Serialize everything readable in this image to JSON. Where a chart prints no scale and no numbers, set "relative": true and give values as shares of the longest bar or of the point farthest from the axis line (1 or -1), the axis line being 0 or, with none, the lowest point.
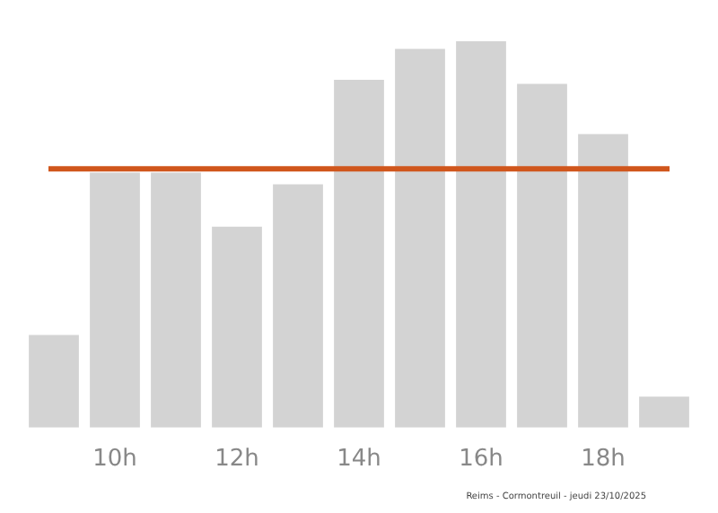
{
  "chart_data": {
    "type": "bar",
    "relative": true,
    "categories": [
      null,
      "10h",
      null,
      "12h",
      null,
      "14h",
      null,
      "16h",
      null,
      "18h",
      null
    ],
    "values": [
      0.24,
      0.66,
      0.66,
      0.52,
      0.63,
      0.9,
      0.98,
      1,
      0.89,
      0.76,
      0.08
    ],
    "color": "#d3d3d3",
    "ref_lines": [
      {
        "axis": "y",
        "value": 0.67,
        "color": "#d0561c"
      }
    ],
    "grid": false,
    "legend": false,
    "annotations": [
      "Reims - Cormontreuil - jeudi 23/10/2025"
    ]
  }
}
